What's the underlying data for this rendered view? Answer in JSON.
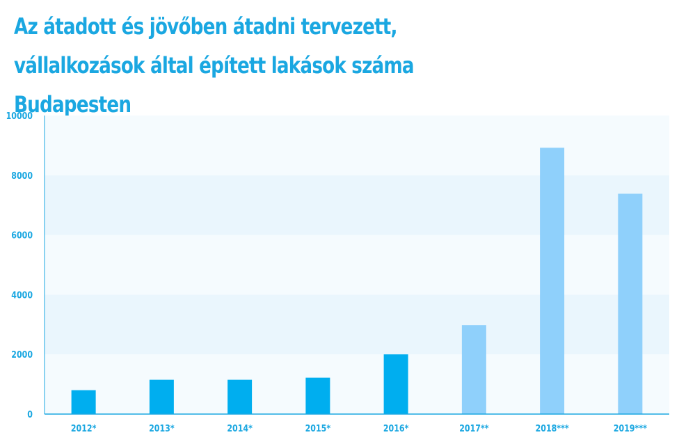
{
  "chart_data": {
    "type": "bar",
    "title_lines": [
      "Az átadott és jövőben átadni tervezett,",
      "vállalkozások által épített lakások száma",
      "Budapesten"
    ],
    "xlabel": "",
    "ylabel": "",
    "categories": [
      "2012*",
      "2013*",
      "2014*",
      "2015*",
      "2016*",
      "2017**",
      "2018***",
      "2019***"
    ],
    "values": [
      800,
      1150,
      1150,
      1220,
      2000,
      2980,
      8920,
      7380
    ],
    "ylim": [
      0,
      10000
    ],
    "yticks": [
      0,
      2000,
      4000,
      6000,
      8000,
      10000
    ],
    "grid": "horizontal-bands",
    "legend": "none",
    "colors": {
      "actual": "#00aeef",
      "planned": "#8fd0fb",
      "title": "#1aa7e1",
      "band_light": "#f5fbfe",
      "band_dark": "#eaf6fd",
      "axis": "#1aa7e1"
    },
    "bar_kinds": [
      "actual",
      "actual",
      "actual",
      "actual",
      "actual",
      "planned",
      "planned",
      "planned"
    ]
  }
}
